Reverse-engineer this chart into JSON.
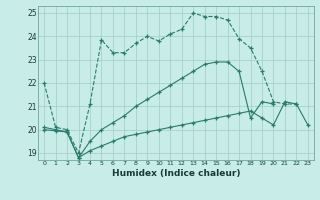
{
  "title": "",
  "xlabel": "Humidex (Indice chaleur)",
  "background_color": "#c8ece8",
  "line_color": "#2a7a6e",
  "grid_color": "#a0ccc8",
  "xlim": [
    -0.5,
    23.5
  ],
  "ylim": [
    18.7,
    25.3
  ],
  "yticks": [
    19,
    20,
    21,
    22,
    23,
    24,
    25
  ],
  "xticks": [
    0,
    1,
    2,
    3,
    4,
    5,
    6,
    7,
    8,
    9,
    10,
    11,
    12,
    13,
    14,
    15,
    16,
    17,
    18,
    19,
    20,
    21,
    22,
    23
  ],
  "line1_x": [
    0,
    1,
    2,
    3,
    4,
    5,
    6,
    7,
    8,
    9,
    10,
    11,
    12,
    13,
    14,
    15,
    16,
    17,
    18,
    19,
    20,
    21,
    22
  ],
  "line1_y": [
    22.0,
    20.1,
    20.0,
    19.0,
    21.1,
    23.85,
    23.3,
    23.3,
    23.7,
    24.0,
    23.8,
    24.1,
    24.3,
    25.0,
    24.85,
    24.85,
    24.7,
    23.9,
    23.5,
    22.5,
    21.2,
    21.1,
    21.1
  ],
  "line1_dashed": true,
  "line2_x": [
    0,
    1,
    2,
    3,
    4,
    5,
    6,
    7,
    8,
    9,
    10,
    11,
    12,
    13,
    14,
    15,
    16,
    17,
    18,
    19,
    20,
    21,
    22
  ],
  "line2_y": [
    20.1,
    20.0,
    19.9,
    18.8,
    19.5,
    20.0,
    20.3,
    20.6,
    21.0,
    21.3,
    21.6,
    21.9,
    22.2,
    22.5,
    22.8,
    22.9,
    22.9,
    22.5,
    20.5,
    21.2,
    21.1,
    null,
    null
  ],
  "line2_dashed": false,
  "line3_x": [
    0,
    1,
    2,
    3,
    4,
    5,
    6,
    7,
    8,
    9,
    10,
    11,
    12,
    13,
    14,
    15,
    16,
    17,
    18,
    19,
    20,
    21,
    22,
    23
  ],
  "line3_y": [
    20.0,
    19.95,
    19.9,
    18.8,
    19.1,
    19.3,
    19.5,
    19.7,
    19.8,
    19.9,
    20.0,
    20.1,
    20.2,
    20.3,
    20.4,
    20.5,
    20.6,
    20.7,
    20.8,
    20.5,
    20.2,
    21.2,
    21.1,
    20.2
  ],
  "line3_dashed": false
}
